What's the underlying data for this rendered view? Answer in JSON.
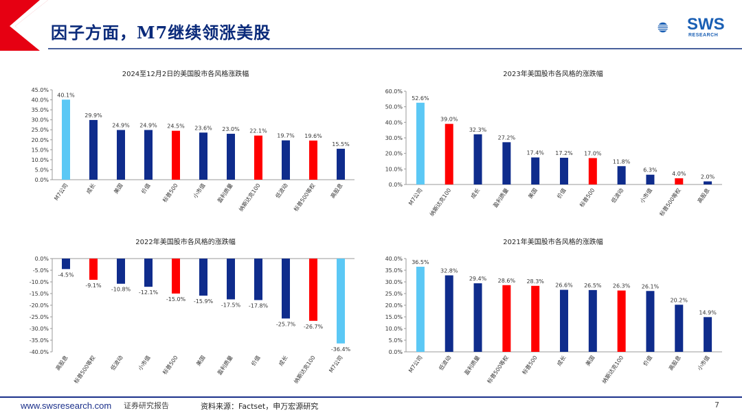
{
  "header": {
    "title": "因子方面，M7继续领涨美股",
    "logo_text": "SWS",
    "logo_sub": "RESEARCH"
  },
  "colors": {
    "light_blue": "#5bc8f5",
    "navy": "#0f2c8c",
    "red": "#ff0000",
    "title_blue": "#0a2a7a",
    "header_red": "#e60012"
  },
  "chart_data": [
    {
      "type": "bar",
      "title": "2024至12月2日的美国股市各风格涨跌幅",
      "categories": [
        "M7公司",
        "成长",
        "美国",
        "价值",
        "标普500",
        "小市值",
        "盈利质量",
        "纳斯达克100",
        "低波动",
        "标普500等权",
        "高股息"
      ],
      "values": [
        40.1,
        29.9,
        24.9,
        24.9,
        24.5,
        23.6,
        23.0,
        22.1,
        19.7,
        19.6,
        15.5
      ],
      "value_labels": [
        "40.1%",
        "29.9%",
        "24.9%",
        "24.9%",
        "24.5%",
        "23.6%",
        "23.0%",
        "22.1%",
        "19.7%",
        "19.6%",
        "15.5%"
      ],
      "colors": [
        "light_blue",
        "navy",
        "navy",
        "navy",
        "red",
        "navy",
        "navy",
        "red",
        "navy",
        "red",
        "navy"
      ],
      "ylim": [
        0,
        45
      ],
      "yticks": [
        0,
        5,
        10,
        15,
        20,
        25,
        30,
        35,
        40,
        45
      ],
      "ytick_labels": [
        "0.0%",
        "5.0%",
        "10.0%",
        "15.0%",
        "20.0%",
        "25.0%",
        "30.0%",
        "35.0%",
        "40.0%",
        "45.0%"
      ],
      "xlabel": "",
      "ylabel": ""
    },
    {
      "type": "bar",
      "title": "2023年美国股市各风格的涨跌幅",
      "categories": [
        "M7公司",
        "纳斯达克100",
        "成长",
        "盈利质量",
        "美国",
        "价值",
        "标普500",
        "低波动",
        "小市值",
        "标普500等权",
        "高股息"
      ],
      "values": [
        52.6,
        39.0,
        32.3,
        27.2,
        17.4,
        17.2,
        17.0,
        11.8,
        6.3,
        4.0,
        2.0
      ],
      "value_labels": [
        "52.6%",
        "39.0%",
        "32.3%",
        "27.2%",
        "17.4%",
        "17.2%",
        "17.0%",
        "11.8%",
        "6.3%",
        "4.0%",
        "2.0%"
      ],
      "colors": [
        "light_blue",
        "red",
        "navy",
        "navy",
        "navy",
        "navy",
        "red",
        "navy",
        "navy",
        "red",
        "navy"
      ],
      "ylim": [
        0,
        60
      ],
      "yticks": [
        0,
        10,
        20,
        30,
        40,
        50,
        60
      ],
      "ytick_labels": [
        "0.0%",
        "10.0%",
        "20.0%",
        "30.0%",
        "40.0%",
        "50.0%",
        "60.0%"
      ],
      "xlabel": "",
      "ylabel": ""
    },
    {
      "type": "bar",
      "title": "2022年美国股市各风格的涨跌幅",
      "categories": [
        "高股息",
        "标普500等权",
        "低波动",
        "小市值",
        "标普500",
        "美国",
        "盈利质量",
        "价值",
        "成长",
        "纳斯达克100",
        "M7公司"
      ],
      "values": [
        -4.5,
        -9.1,
        -10.8,
        -12.1,
        -15.0,
        -15.9,
        -17.5,
        -17.8,
        -25.7,
        -26.7,
        -36.4
      ],
      "value_labels": [
        "-4.5%",
        "-9.1%",
        "-10.8%",
        "-12.1%",
        "-15.0%",
        "-15.9%",
        "-17.5%",
        "-17.8%",
        "-25.7%",
        "-26.7%",
        "-36.4%"
      ],
      "colors": [
        "navy",
        "red",
        "navy",
        "navy",
        "red",
        "navy",
        "navy",
        "navy",
        "navy",
        "red",
        "light_blue"
      ],
      "ylim": [
        -40,
        0
      ],
      "yticks": [
        0,
        -5,
        -10,
        -15,
        -20,
        -25,
        -30,
        -35,
        -40
      ],
      "ytick_labels": [
        "0.0%",
        "-5.0%",
        "-10.0%",
        "-15.0%",
        "-20.0%",
        "-25.0%",
        "-30.0%",
        "-35.0%",
        "-40.0%"
      ],
      "xlabel": "",
      "ylabel": ""
    },
    {
      "type": "bar",
      "title": "2021年美国股市各风格的涨跌幅",
      "categories": [
        "M7公司",
        "低波动",
        "盈利质量",
        "标普500等权",
        "标普500",
        "成长",
        "美国",
        "纳斯达克100",
        "价值",
        "高股息",
        "小市值"
      ],
      "values": [
        36.5,
        32.8,
        29.4,
        28.6,
        28.3,
        26.6,
        26.5,
        26.3,
        26.1,
        20.2,
        14.9
      ],
      "value_labels": [
        "36.5%",
        "32.8%",
        "29.4%",
        "28.6%",
        "28.3%",
        "26.6%",
        "26.5%",
        "26.3%",
        "26.1%",
        "20.2%",
        "14.9%"
      ],
      "colors": [
        "light_blue",
        "navy",
        "navy",
        "red",
        "red",
        "navy",
        "navy",
        "red",
        "navy",
        "navy",
        "navy"
      ],
      "ylim": [
        0,
        40
      ],
      "yticks": [
        0,
        5,
        10,
        15,
        20,
        25,
        30,
        35,
        40
      ],
      "ytick_labels": [
        "0.0%",
        "5.0%",
        "10.0%",
        "15.0%",
        "20.0%",
        "25.0%",
        "30.0%",
        "35.0%",
        "40.0%"
      ],
      "xlabel": "",
      "ylabel": ""
    }
  ],
  "footer": {
    "url": "www.swsresearch.com",
    "report": "证券研究报告",
    "source": "资料来源：Factset，申万宏源研究",
    "page": "7"
  }
}
